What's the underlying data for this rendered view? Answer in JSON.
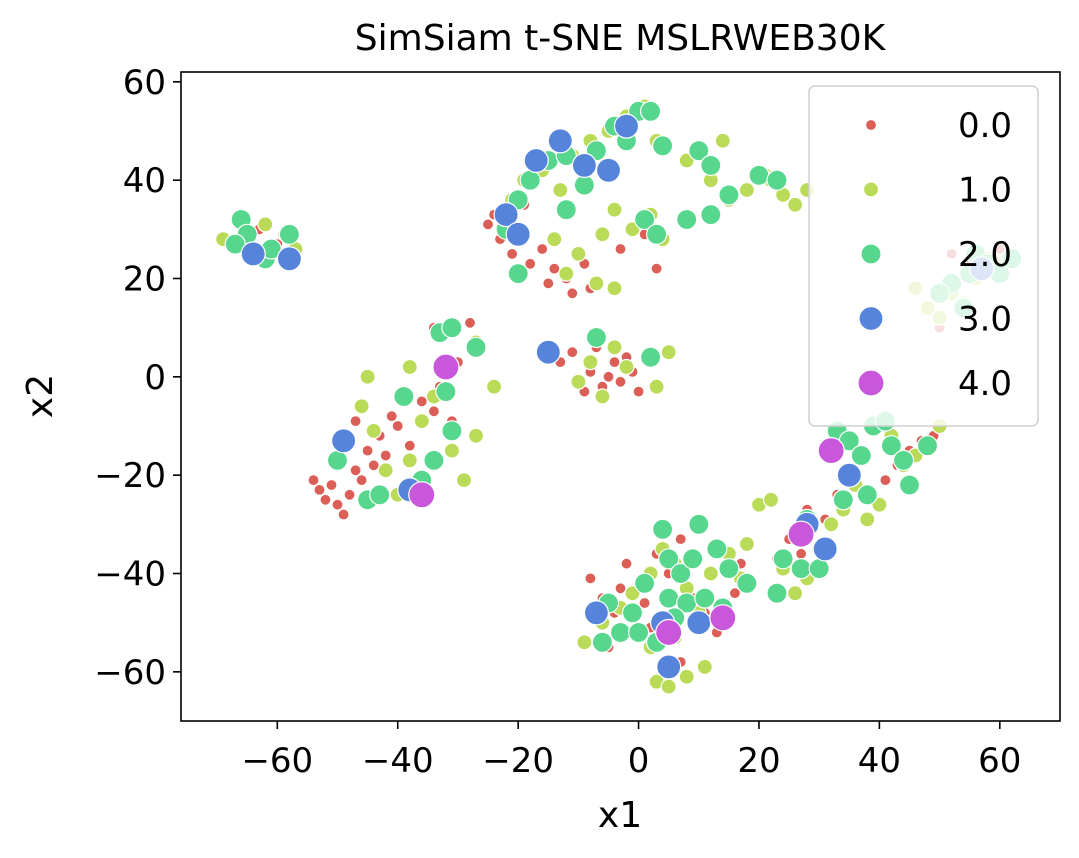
{
  "chart_data": {
    "type": "scatter",
    "title": "SimSiam t-SNE MSLRWEB30K",
    "xlabel": "x1",
    "ylabel": "x2",
    "xlim": [
      -76,
      70
    ],
    "ylim": [
      -70,
      62
    ],
    "grid": false,
    "x_ticks": [
      -60,
      -40,
      -20,
      0,
      20,
      40,
      60
    ],
    "y_ticks": [
      -60,
      -40,
      -20,
      0,
      20,
      40,
      60
    ],
    "x_tick_labels": [
      "−60",
      "−40",
      "−20",
      "0",
      "20",
      "40",
      "60"
    ],
    "y_tick_labels": [
      "−60",
      "−40",
      "−20",
      "0",
      "20",
      "40",
      "60"
    ],
    "legend": {
      "placement": "top-right",
      "entries": [
        "0.0",
        "1.0",
        "2.0",
        "3.0",
        "4.0"
      ]
    },
    "series": [
      {
        "name": "0.0",
        "color": "#db5f57",
        "points": [
          [
            -54,
            -21
          ],
          [
            -53,
            -23
          ],
          [
            -52,
            -25
          ],
          [
            -51,
            -22
          ],
          [
            -50,
            -26
          ],
          [
            -49,
            -28
          ],
          [
            -48,
            -24
          ],
          [
            -47,
            -19
          ],
          [
            -46,
            -21
          ],
          [
            -45,
            -15
          ],
          [
            -44,
            -18
          ],
          [
            -43,
            -12
          ],
          [
            -42,
            -16
          ],
          [
            -41,
            -8
          ],
          [
            -40,
            -10
          ],
          [
            -38,
            -14
          ],
          [
            -36,
            -5
          ],
          [
            -34,
            -7
          ],
          [
            -33,
            -2
          ],
          [
            -31,
            -9
          ],
          [
            -30,
            3
          ],
          [
            -28,
            11
          ],
          [
            -34,
            10
          ],
          [
            -47,
            -9
          ],
          [
            -25,
            31
          ],
          [
            -23,
            28
          ],
          [
            -21,
            25
          ],
          [
            -20,
            21
          ],
          [
            -18,
            23
          ],
          [
            -16,
            26
          ],
          [
            -14,
            22
          ],
          [
            -12,
            20
          ],
          [
            -11,
            17
          ],
          [
            -9,
            23
          ],
          [
            -15,
            19
          ],
          [
            -8,
            18
          ],
          [
            -3,
            26
          ],
          [
            1,
            29
          ],
          [
            3,
            22
          ],
          [
            -19,
            35
          ],
          [
            -24,
            33
          ],
          [
            -13,
            3
          ],
          [
            -11,
            5
          ],
          [
            -10,
            -1
          ],
          [
            -9,
            -3
          ],
          [
            -8,
            1
          ],
          [
            -7,
            6
          ],
          [
            -6,
            -2
          ],
          [
            -5,
            0
          ],
          [
            -4,
            3
          ],
          [
            -3,
            -1
          ],
          [
            -2,
            4
          ],
          [
            -1,
            1
          ],
          [
            0,
            -3
          ],
          [
            -8,
            -41
          ],
          [
            -6,
            -45
          ],
          [
            -4,
            -48
          ],
          [
            -3,
            -43
          ],
          [
            -2,
            -38
          ],
          [
            1,
            -46
          ],
          [
            3,
            -36
          ],
          [
            5,
            -40
          ],
          [
            7,
            -33
          ],
          [
            9,
            -45
          ],
          [
            11,
            -48
          ],
          [
            13,
            -52
          ],
          [
            16,
            -44
          ],
          [
            17,
            -38
          ],
          [
            -7,
            -54
          ],
          [
            -5,
            -55
          ],
          [
            2,
            -51
          ],
          [
            4,
            -60
          ],
          [
            7,
            -58
          ],
          [
            25,
            -33
          ],
          [
            27,
            -36
          ],
          [
            29,
            -31
          ],
          [
            31,
            -29
          ],
          [
            33,
            -24
          ],
          [
            35,
            -19
          ],
          [
            37,
            -16
          ],
          [
            41,
            -21
          ],
          [
            43,
            -18
          ],
          [
            45,
            -15
          ],
          [
            47,
            -13
          ],
          [
            49,
            -12
          ],
          [
            23,
            -37
          ],
          [
            28,
            -27
          ],
          [
            52,
            25
          ],
          [
            55,
            24
          ],
          [
            57,
            22
          ],
          [
            60,
            26
          ],
          [
            62,
            24
          ],
          [
            50,
            10
          ],
          [
            -63,
            30
          ],
          [
            -60,
            27
          ],
          [
            -59,
            29
          ],
          [
            -65,
            26
          ]
        ]
      },
      {
        "name": "1.0",
        "color": "#b9db57",
        "points": [
          [
            -69,
            28
          ],
          [
            -62,
            31
          ],
          [
            -57,
            26
          ],
          [
            -46,
            -6
          ],
          [
            -44,
            -11
          ],
          [
            -42,
            -19
          ],
          [
            -40,
            -24
          ],
          [
            -38,
            -17
          ],
          [
            -36,
            -9
          ],
          [
            -34,
            -4
          ],
          [
            -31,
            -15
          ],
          [
            -29,
            -21
          ],
          [
            -27,
            -12
          ],
          [
            -45,
            0
          ],
          [
            -38,
            2
          ],
          [
            -27,
            7
          ],
          [
            -24,
            -2
          ],
          [
            -49,
            -12
          ],
          [
            -21,
            36
          ],
          [
            -19,
            40
          ],
          [
            -16,
            42
          ],
          [
            -13,
            38
          ],
          [
            -11,
            45
          ],
          [
            -8,
            48
          ],
          [
            -5,
            50
          ],
          [
            -2,
            53
          ],
          [
            1,
            55
          ],
          [
            3,
            48
          ],
          [
            -14,
            28
          ],
          [
            -10,
            25
          ],
          [
            -6,
            29
          ],
          [
            -4,
            34
          ],
          [
            -1,
            30
          ],
          [
            2,
            33
          ],
          [
            -12,
            21
          ],
          [
            -7,
            19
          ],
          [
            -4,
            18
          ],
          [
            4,
            28
          ],
          [
            8,
            44
          ],
          [
            12,
            40
          ],
          [
            15,
            36
          ],
          [
            18,
            38
          ],
          [
            21,
            41
          ],
          [
            24,
            37
          ],
          [
            26,
            35
          ],
          [
            28,
            38
          ],
          [
            14,
            48
          ],
          [
            22,
            40
          ],
          [
            -10,
            -1
          ],
          [
            -8,
            3
          ],
          [
            -6,
            -4
          ],
          [
            -4,
            6
          ],
          [
            -2,
            2
          ],
          [
            3,
            -2
          ],
          [
            5,
            5
          ],
          [
            -9,
            -54
          ],
          [
            -6,
            -50
          ],
          [
            -3,
            -47
          ],
          [
            -1,
            -44
          ],
          [
            2,
            -40
          ],
          [
            4,
            -35
          ],
          [
            6,
            -38
          ],
          [
            8,
            -43
          ],
          [
            10,
            -48
          ],
          [
            12,
            -40
          ],
          [
            15,
            -36
          ],
          [
            17,
            -41
          ],
          [
            18,
            -34
          ],
          [
            3,
            -62
          ],
          [
            5,
            -63
          ],
          [
            8,
            -61
          ],
          [
            11,
            -59
          ],
          [
            2,
            -55
          ],
          [
            6,
            -53
          ],
          [
            20,
            -26
          ],
          [
            22,
            -25
          ],
          [
            24,
            -39
          ],
          [
            26,
            -44
          ],
          [
            28,
            -41
          ],
          [
            30,
            -35
          ],
          [
            32,
            -30
          ],
          [
            34,
            -27
          ],
          [
            36,
            -22
          ],
          [
            38,
            -29
          ],
          [
            40,
            -26
          ],
          [
            42,
            -12
          ],
          [
            44,
            -18
          ],
          [
            46,
            -16
          ],
          [
            48,
            -14
          ],
          [
            50,
            -10
          ],
          [
            48,
            14
          ],
          [
            50,
            12
          ],
          [
            52,
            17
          ],
          [
            54,
            15
          ],
          [
            56,
            20
          ],
          [
            58,
            24
          ],
          [
            60,
            23
          ],
          [
            46,
            18
          ]
        ]
      },
      {
        "name": "2.0",
        "color": "#57d68d",
        "points": [
          [
            -66,
            32
          ],
          [
            -65,
            29
          ],
          [
            -67,
            27
          ],
          [
            -62,
            24
          ],
          [
            -58,
            29
          ],
          [
            -61,
            26
          ],
          [
            -50,
            -17
          ],
          [
            -45,
            -25
          ],
          [
            -43,
            -24
          ],
          [
            -39,
            -4
          ],
          [
            -34,
            -17
          ],
          [
            -33,
            9
          ],
          [
            -31,
            10
          ],
          [
            -32,
            -3
          ],
          [
            -31,
            -11
          ],
          [
            -27,
            6
          ],
          [
            -36,
            -21
          ],
          [
            -20,
            21
          ],
          [
            -22,
            30
          ],
          [
            -20,
            36
          ],
          [
            -18,
            40
          ],
          [
            -15,
            44
          ],
          [
            -12,
            45
          ],
          [
            -9,
            39
          ],
          [
            -7,
            46
          ],
          [
            -4,
            51
          ],
          [
            -2,
            48
          ],
          [
            0,
            54
          ],
          [
            2,
            54
          ],
          [
            -12,
            34
          ],
          [
            1,
            32
          ],
          [
            3,
            29
          ],
          [
            4,
            47
          ],
          [
            10,
            46
          ],
          [
            12,
            43
          ],
          [
            15,
            37
          ],
          [
            20,
            41
          ],
          [
            23,
            40
          ],
          [
            8,
            32
          ],
          [
            12,
            33
          ],
          [
            -7,
            8
          ],
          [
            2,
            4
          ],
          [
            -6,
            -54
          ],
          [
            -3,
            -52
          ],
          [
            0,
            -52
          ],
          [
            -5,
            -46
          ],
          [
            -1,
            -48
          ],
          [
            1,
            -42
          ],
          [
            4,
            -31
          ],
          [
            5,
            -37
          ],
          [
            7,
            -40
          ],
          [
            9,
            -37
          ],
          [
            10,
            -30
          ],
          [
            13,
            -35
          ],
          [
            15,
            -39
          ],
          [
            18,
            -42
          ],
          [
            5,
            -45
          ],
          [
            8,
            -46
          ],
          [
            3,
            -54
          ],
          [
            6,
            -49
          ],
          [
            11,
            -45
          ],
          [
            14,
            -47
          ],
          [
            23,
            -44
          ],
          [
            24,
            -37
          ],
          [
            27,
            -39
          ],
          [
            28,
            -29
          ],
          [
            30,
            -39
          ],
          [
            33,
            -11
          ],
          [
            35,
            -13
          ],
          [
            37,
            -16
          ],
          [
            38,
            -24
          ],
          [
            39,
            -10
          ],
          [
            41,
            -9
          ],
          [
            42,
            -14
          ],
          [
            44,
            -17
          ],
          [
            45,
            -22
          ],
          [
            48,
            -14
          ],
          [
            34,
            -25
          ],
          [
            52,
            19
          ],
          [
            54,
            14
          ],
          [
            56,
            25
          ],
          [
            58,
            23
          ],
          [
            60,
            21
          ],
          [
            62,
            24
          ],
          [
            50,
            17
          ],
          [
            55,
            21
          ]
        ]
      },
      {
        "name": "3.0",
        "color": "#5784db",
        "points": [
          [
            -64,
            25
          ],
          [
            -58,
            24
          ],
          [
            -49,
            -13
          ],
          [
            -38,
            -23
          ],
          [
            -22,
            33
          ],
          [
            -20,
            29
          ],
          [
            -17,
            44
          ],
          [
            -15,
            5
          ],
          [
            -13,
            48
          ],
          [
            -9,
            43
          ],
          [
            -5,
            42
          ],
          [
            -2,
            51
          ],
          [
            -7,
            -48
          ],
          [
            4,
            -50
          ],
          [
            5,
            -59
          ],
          [
            10,
            -50
          ],
          [
            28,
            -30
          ],
          [
            31,
            -35
          ],
          [
            35,
            -20
          ],
          [
            57,
            22
          ]
        ]
      },
      {
        "name": "4.0",
        "color": "#c957db",
        "points": [
          [
            -32,
            2
          ],
          [
            -36,
            -24
          ],
          [
            5,
            -52
          ],
          [
            14,
            -49
          ],
          [
            27,
            -32
          ],
          [
            32,
            -15
          ]
        ]
      }
    ]
  }
}
